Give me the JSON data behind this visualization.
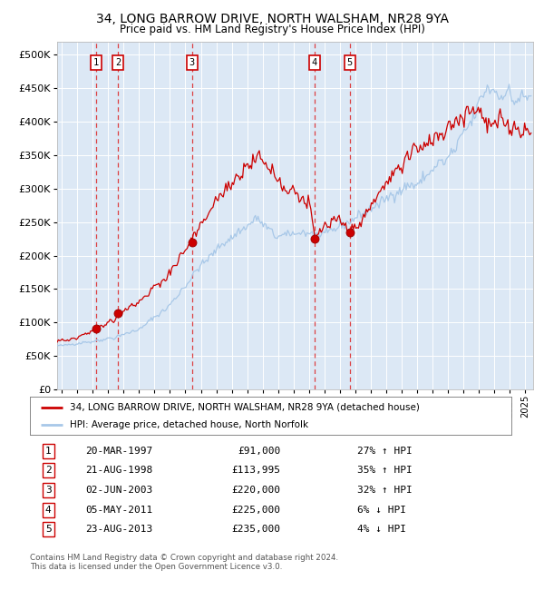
{
  "title": "34, LONG BARROW DRIVE, NORTH WALSHAM, NR28 9YA",
  "subtitle": "Price paid vs. HM Land Registry's House Price Index (HPI)",
  "legend_property": "34, LONG BARROW DRIVE, NORTH WALSHAM, NR28 9YA (detached house)",
  "legend_hpi": "HPI: Average price, detached house, North Norfolk",
  "footer_line1": "Contains HM Land Registry data © Crown copyright and database right 2024.",
  "footer_line2": "This data is licensed under the Open Government Licence v3.0.",
  "sales": [
    {
      "num": "1",
      "date": "20-MAR-1997",
      "price": "£91,000",
      "hpi_pct": "27% ↑ HPI",
      "x_year": 1997.22,
      "price_val": 91000
    },
    {
      "num": "2",
      "date": "21-AUG-1998",
      "price": "£113,995",
      "hpi_pct": "35% ↑ HPI",
      "x_year": 1998.64,
      "price_val": 113995
    },
    {
      "num": "3",
      "date": "02-JUN-2003",
      "price": "£220,000",
      "hpi_pct": "32% ↑ HPI",
      "x_year": 2003.42,
      "price_val": 220000
    },
    {
      "num": "4",
      "date": "05-MAY-2011",
      "price": "£225,000",
      "hpi_pct": "6% ↓ HPI",
      "x_year": 2011.34,
      "price_val": 225000
    },
    {
      "num": "5",
      "date": "23-AUG-2013",
      "price": "£235,000",
      "hpi_pct": "4% ↓ HPI",
      "x_year": 2013.64,
      "price_val": 235000
    }
  ],
  "color_property": "#cc0000",
  "color_hpi": "#a8c8e8",
  "color_sale_dot": "#cc0000",
  "color_vline": "#dd2222",
  "color_bg": "#dce8f5",
  "color_grid": "#ffffff",
  "ylim": [
    0,
    520000
  ],
  "yticks": [
    0,
    50000,
    100000,
    150000,
    200000,
    250000,
    300000,
    350000,
    400000,
    450000,
    500000
  ],
  "xlim_start": 1994.7,
  "xlim_end": 2025.5,
  "hpi_milestones_x": [
    1994.7,
    1995.5,
    1997.0,
    1998.5,
    2000.0,
    2002.0,
    2004.0,
    2006.0,
    2007.5,
    2009.0,
    2010.5,
    2012.0,
    2014.0,
    2016.0,
    2018.0,
    2020.0,
    2021.5,
    2022.5,
    2023.5,
    2024.5,
    2025.3
  ],
  "hpi_milestones_y": [
    65000,
    67000,
    72000,
    78000,
    90000,
    125000,
    185000,
    230000,
    255000,
    228000,
    235000,
    232000,
    255000,
    285000,
    310000,
    345000,
    400000,
    455000,
    440000,
    435000,
    438000
  ],
  "prop_milestones_x": [
    1994.7,
    1995.5,
    1997.0,
    1997.22,
    1998.5,
    1998.64,
    2000.0,
    2002.0,
    2003.42,
    2004.0,
    2005.5,
    2006.5,
    2007.5,
    2008.5,
    2009.3,
    2010.0,
    2011.0,
    2011.34,
    2012.0,
    2013.0,
    2013.64,
    2014.5,
    2016.0,
    2018.0,
    2020.0,
    2021.5,
    2022.0,
    2022.5,
    2023.0,
    2023.5,
    2024.0,
    2024.5,
    2025.3
  ],
  "prop_milestones_y": [
    72000,
    74000,
    88000,
    91000,
    105000,
    113995,
    130000,
    175000,
    220000,
    245000,
    295000,
    325000,
    350000,
    330000,
    305000,
    300000,
    280000,
    225000,
    245000,
    250000,
    235000,
    255000,
    310000,
    355000,
    395000,
    420000,
    415000,
    395000,
    390000,
    400000,
    395000,
    390000,
    385000
  ]
}
